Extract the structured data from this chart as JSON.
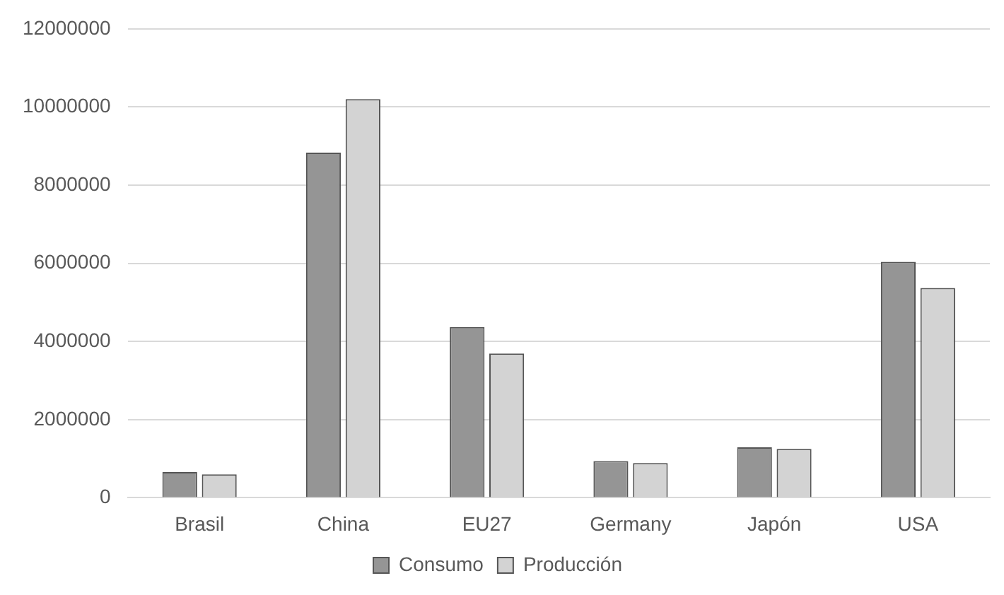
{
  "chart_data": {
    "type": "bar",
    "categories": [
      "Brasil",
      "China",
      "EU27",
      "Germany",
      "Japón",
      "USA"
    ],
    "series": [
      {
        "name": "Consumo",
        "color": "#959595",
        "values": [
          660000,
          8830000,
          4370000,
          940000,
          1290000,
          6040000
        ]
      },
      {
        "name": "Producción",
        "color": "#d3d3d3",
        "values": [
          600000,
          10200000,
          3690000,
          890000,
          1250000,
          5370000
        ]
      }
    ],
    "ylim": [
      0,
      12000000
    ],
    "yticks": [
      0,
      2000000,
      4000000,
      6000000,
      8000000,
      10000000,
      12000000
    ],
    "grid": "y",
    "legend": "bottom"
  }
}
